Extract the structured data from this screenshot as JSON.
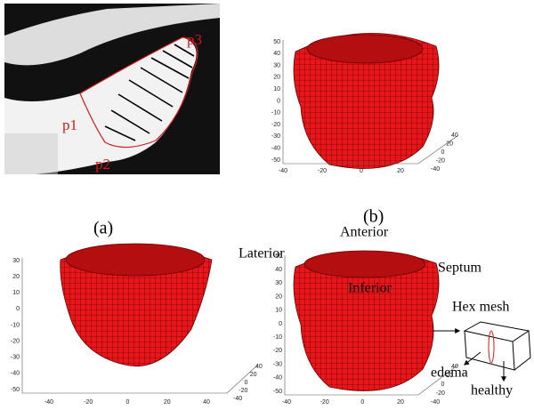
{
  "panel_a": {
    "points": [
      "p1",
      "p2",
      "p3"
    ],
    "caption": "(a)"
  },
  "panel_b": {
    "caption": "(b)",
    "yticks": [
      "50",
      "40",
      "30",
      "20",
      "10",
      "0",
      "-10",
      "-20",
      "-30",
      "-40",
      "-50"
    ],
    "xticks": [
      "-40",
      "-20",
      "0",
      "20"
    ],
    "zticks": [
      "40",
      "20",
      "0",
      "-20",
      "-40"
    ]
  },
  "panel_c": {
    "yticks": [
      "30",
      "20",
      "10",
      "0",
      "-10",
      "-20",
      "-30",
      "-40",
      "-50"
    ],
    "xticks": [
      "-40",
      "-20",
      "0",
      "20",
      "40"
    ],
    "zticks": [
      "40",
      "20",
      "0",
      "-20",
      "-40"
    ]
  },
  "panel_d": {
    "yticks": [
      "50",
      "40",
      "30",
      "20",
      "10",
      "0",
      "-10",
      "-20",
      "-30",
      "-40",
      "-50"
    ],
    "xticks": [
      "-40",
      "-20",
      "0",
      "20"
    ],
    "zticks": [
      "40",
      "20",
      "0",
      "-20",
      "-40"
    ],
    "labels": {
      "anterior": "Anterior",
      "laterior": "Laterior",
      "septum": "Septum",
      "inferior": "Inferior",
      "hex_mesh": "Hex mesh",
      "edema": "edema",
      "healthy": "healthy"
    }
  }
}
